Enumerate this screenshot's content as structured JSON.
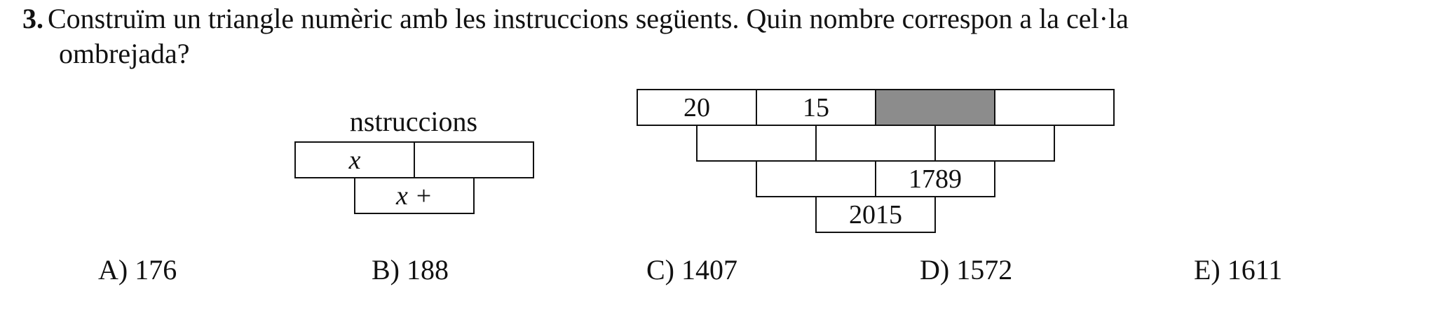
{
  "question": {
    "number": "3.",
    "line1": "Construïm un triangle numèric amb les instruccions següents. Quin nombre correspon a la cel·la",
    "line2": "ombrejada?"
  },
  "instructions": {
    "title": "nstruccions",
    "top_left": "x",
    "top_right": "",
    "bottom": "x +"
  },
  "triangle": {
    "rows": [
      [
        "20",
        "15",
        "",
        ""
      ],
      [
        "",
        "",
        ""
      ],
      [
        "",
        "1789"
      ],
      [
        "2015"
      ]
    ],
    "shaded_cell": "row 1, column 3",
    "shade_color": "#8c8c8c"
  },
  "options": [
    {
      "label": "A) 176"
    },
    {
      "label": "B) 188"
    },
    {
      "label": "C) 1407"
    },
    {
      "label": "D) 1572"
    },
    {
      "label": "E) 1611"
    }
  ]
}
